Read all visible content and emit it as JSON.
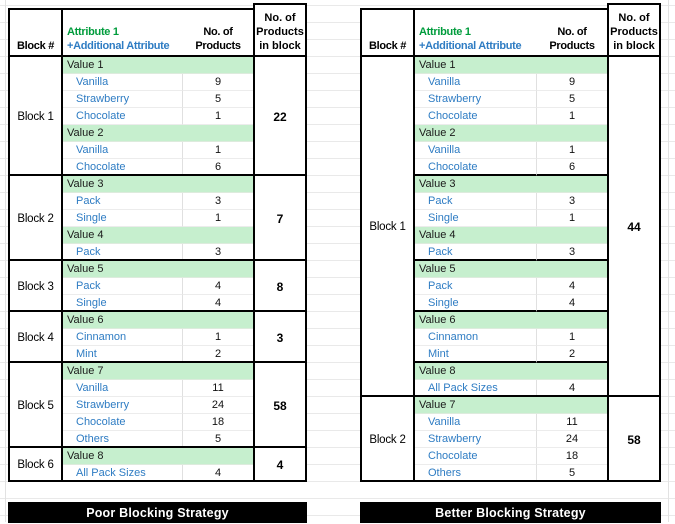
{
  "colors": {
    "green_text": "#009C3C",
    "blue_text": "#2E7CC3",
    "green_fill": "#C6EFCE",
    "border_black": "#000000",
    "footer_bg": "#000000",
    "footer_text": "#FFFFFF"
  },
  "header": {
    "block_col": "Block #",
    "attr_line1": "Attribute 1",
    "attr_line2": "+Additional Attribute",
    "products_col": [
      "No. of",
      "Products"
    ],
    "block_total_col": [
      "No. of",
      "Products",
      "in block"
    ]
  },
  "tables": [
    {
      "name": "poor-strategy",
      "title": "Poor Blocking Strategy",
      "blocks": [
        {
          "label": "Block 1",
          "total": 22,
          "rows": [
            {
              "type": "value",
              "label": "Value 1"
            },
            {
              "type": "item",
              "label": "Vanilla",
              "count": 9
            },
            {
              "type": "item",
              "label": "Strawberry",
              "count": 5
            },
            {
              "type": "item",
              "label": "Chocolate",
              "count": 1
            },
            {
              "type": "value",
              "label": "Value 2"
            },
            {
              "type": "item",
              "label": "Vanilla",
              "count": 1
            },
            {
              "type": "item",
              "label": "Chocolate",
              "count": 6
            }
          ]
        },
        {
          "label": "Block 2",
          "total": 7,
          "rows": [
            {
              "type": "value",
              "label": "Value 3"
            },
            {
              "type": "item",
              "label": "Pack",
              "count": 3
            },
            {
              "type": "item",
              "label": "Single",
              "count": 1
            },
            {
              "type": "value",
              "label": "Value 4"
            },
            {
              "type": "item",
              "label": "Pack",
              "count": 3
            }
          ]
        },
        {
          "label": "Block 3",
          "total": 8,
          "rows": [
            {
              "type": "value",
              "label": "Value 5"
            },
            {
              "type": "item",
              "label": "Pack",
              "count": 4
            },
            {
              "type": "item",
              "label": "Single",
              "count": 4
            }
          ]
        },
        {
          "label": "Block 4",
          "total": 3,
          "rows": [
            {
              "type": "value",
              "label": "Value 6"
            },
            {
              "type": "item",
              "label": "Cinnamon",
              "count": 1
            },
            {
              "type": "item",
              "label": "Mint",
              "count": 2
            }
          ]
        },
        {
          "label": "Block 5",
          "total": 58,
          "rows": [
            {
              "type": "value",
              "label": "Value 7"
            },
            {
              "type": "item",
              "label": "Vanilla",
              "count": 11
            },
            {
              "type": "item",
              "label": "Strawberry",
              "count": 24
            },
            {
              "type": "item",
              "label": "Chocolate",
              "count": 18
            },
            {
              "type": "item",
              "label": "Others",
              "count": 5
            }
          ]
        },
        {
          "label": "Block 6",
          "total": 4,
          "rows": [
            {
              "type": "value",
              "label": "Value 8"
            },
            {
              "type": "item",
              "label": "All Pack Sizes",
              "count": 4
            }
          ]
        }
      ]
    },
    {
      "name": "better-strategy",
      "title": "Better Blocking Strategy",
      "blocks": [
        {
          "label": "Block 1",
          "total": 44,
          "rows": [
            {
              "type": "value",
              "label": "Value 1"
            },
            {
              "type": "item",
              "label": "Vanilla",
              "count": 9
            },
            {
              "type": "item",
              "label": "Strawberry",
              "count": 5
            },
            {
              "type": "item",
              "label": "Chocolate",
              "count": 1
            },
            {
              "type": "value",
              "label": "Value 2"
            },
            {
              "type": "item",
              "label": "Vanilla",
              "count": 1
            },
            {
              "type": "item",
              "label": "Chocolate",
              "count": 6,
              "group_end": true
            },
            {
              "type": "value",
              "label": "Value 3"
            },
            {
              "type": "item",
              "label": "Pack",
              "count": 3
            },
            {
              "type": "item",
              "label": "Single",
              "count": 1
            },
            {
              "type": "value",
              "label": "Value 4"
            },
            {
              "type": "item",
              "label": "Pack",
              "count": 3,
              "group_end": true
            },
            {
              "type": "value",
              "label": "Value 5"
            },
            {
              "type": "item",
              "label": "Pack",
              "count": 4
            },
            {
              "type": "item",
              "label": "Single",
              "count": 4,
              "group_end": true
            },
            {
              "type": "value",
              "label": "Value 6"
            },
            {
              "type": "item",
              "label": "Cinnamon",
              "count": 1
            },
            {
              "type": "item",
              "label": "Mint",
              "count": 2,
              "group_end": true
            },
            {
              "type": "value",
              "label": "Value 8"
            },
            {
              "type": "item",
              "label": "All Pack Sizes",
              "count": 4
            }
          ]
        },
        {
          "label": "Block 2",
          "total": 58,
          "rows": [
            {
              "type": "value",
              "label": "Value 7"
            },
            {
              "type": "item",
              "label": "Vanilla",
              "count": 11
            },
            {
              "type": "item",
              "label": "Strawberry",
              "count": 24
            },
            {
              "type": "item",
              "label": "Chocolate",
              "count": 18
            },
            {
              "type": "item",
              "label": "Others",
              "count": 5
            }
          ]
        }
      ]
    }
  ]
}
